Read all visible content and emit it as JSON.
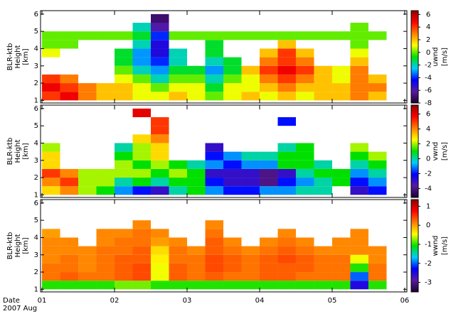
{
  "chart_data": [
    {
      "type": "heatmap",
      "ylabel": [
        "BLR-ktb",
        "Height",
        "[km]"
      ],
      "colorbar_label": "uwnd",
      "colorbar_unit": "[m/s]",
      "xlim": [
        0.98,
        6.03
      ],
      "xticks": [
        1,
        2,
        3,
        4,
        5,
        6
      ],
      "ylim": [
        0.85,
        6.2
      ],
      "yticks": [
        1,
        2,
        3,
        4,
        5,
        6
      ],
      "zlim": [
        -8,
        6.6
      ],
      "zticks": [
        -8,
        -6,
        -4,
        -2,
        0,
        2,
        4,
        6
      ],
      "colormap": [
        "#1a0030",
        "#5a1aa0",
        "#0000ff",
        "#00ccff",
        "#00e000",
        "#ffff00",
        "#ff8000",
        "#ff0000",
        "#900000"
      ],
      "x_edges": [
        1,
        1.25,
        1.5,
        1.75,
        2,
        2.25,
        2.5,
        2.75,
        3,
        3.25,
        3.5,
        3.75,
        4,
        4.25,
        4.5,
        4.75,
        5,
        5.25,
        5.5,
        5.75
      ],
      "y_edges": [
        1,
        1.5,
        2,
        2.5,
        3,
        3.5,
        4,
        4.5,
        5,
        5.5,
        6
      ],
      "z": [
        [
          4,
          5,
          3,
          2,
          2,
          1,
          1,
          2,
          1,
          0,
          1,
          2,
          1,
          2,
          1,
          2,
          2,
          3,
          2
        ],
        [
          5,
          4,
          3,
          2,
          2,
          1,
          0,
          1,
          1,
          -1,
          1,
          1,
          2,
          3,
          2,
          2,
          2,
          3,
          3
        ],
        [
          4,
          3,
          null,
          null,
          1,
          0,
          -2,
          0,
          0,
          -2,
          0,
          1,
          3,
          4,
          3,
          2,
          1,
          3,
          2
        ],
        [
          null,
          null,
          null,
          null,
          0,
          -2,
          -3,
          -1,
          -1,
          -3,
          -1,
          2,
          4,
          5,
          4,
          2,
          1,
          3,
          null
        ],
        [
          null,
          null,
          null,
          null,
          -1,
          -3,
          -4,
          -2,
          null,
          -2,
          -1,
          null,
          3,
          4,
          3,
          null,
          null,
          2,
          null
        ],
        [
          1,
          null,
          null,
          null,
          -1,
          -3,
          -5,
          -2,
          null,
          -1,
          null,
          null,
          2,
          4,
          2,
          null,
          null,
          1,
          null
        ],
        [
          0,
          0,
          null,
          null,
          null,
          -2,
          -5,
          null,
          null,
          -1,
          null,
          null,
          null,
          2,
          null,
          null,
          null,
          0,
          null
        ],
        [
          0,
          0,
          0,
          0,
          0,
          -1,
          -4,
          0,
          0,
          0,
          0,
          0,
          0,
          0,
          0,
          0,
          0,
          0,
          0
        ],
        [
          null,
          null,
          null,
          null,
          null,
          -2,
          -6,
          null,
          null,
          null,
          null,
          null,
          null,
          null,
          null,
          null,
          null,
          0,
          null
        ],
        [
          null,
          null,
          null,
          null,
          null,
          null,
          -7,
          null,
          null,
          null,
          null,
          null,
          null,
          null,
          null,
          null,
          null,
          null,
          null
        ]
      ]
    },
    {
      "type": "heatmap",
      "ylabel": [
        "BLR-ktb",
        "Height",
        "[km]"
      ],
      "colorbar_label": "vwnd",
      "colorbar_unit": "[m/s]",
      "xlim": [
        0.98,
        6.03
      ],
      "xticks": [
        1,
        2,
        3,
        4,
        5,
        6
      ],
      "ylim": [
        0.85,
        6.2
      ],
      "yticks": [
        1,
        2,
        3,
        4,
        5,
        6
      ],
      "zlim": [
        -5.2,
        7.2
      ],
      "zticks": [
        -4,
        -2,
        0,
        2,
        4,
        6
      ],
      "colormap": [
        "#1a0030",
        "#5a1aa0",
        "#0000ff",
        "#00ccff",
        "#00e000",
        "#ffff00",
        "#ff8000",
        "#ff0000",
        "#900000"
      ],
      "x_edges": [
        1,
        1.25,
        1.5,
        1.75,
        2,
        2.25,
        2.5,
        2.75,
        3,
        3.25,
        3.5,
        3.75,
        4,
        4.25,
        4.5,
        4.75,
        5,
        5.25,
        5.5,
        5.75
      ],
      "y_edges": [
        1,
        1.5,
        2,
        2.5,
        3,
        3.5,
        4,
        4.5,
        5,
        5.5,
        6
      ],
      "z": [
        [
          3,
          4,
          2,
          1,
          -1,
          -2,
          -3,
          0,
          1,
          -1,
          -2,
          -2,
          -1,
          -1,
          0,
          0,
          null,
          -3,
          -2
        ],
        [
          4,
          5,
          2,
          2,
          0,
          1,
          0,
          1,
          1,
          -2,
          -3,
          -3,
          -4,
          -2,
          -1,
          0,
          1,
          -2,
          -1
        ],
        [
          5,
          4,
          2,
          2,
          2,
          2,
          1,
          2,
          1,
          -3,
          -3,
          -3,
          -4,
          -3,
          0,
          1,
          1,
          -1,
          0
        ],
        [
          3,
          null,
          null,
          null,
          2,
          1,
          2,
          1,
          0,
          -1,
          -2,
          -1,
          -1,
          1,
          1,
          0,
          null,
          0,
          1
        ],
        [
          3,
          null,
          null,
          null,
          1,
          2,
          3,
          null,
          null,
          -2,
          -1,
          0,
          0,
          1,
          1,
          null,
          null,
          1,
          2
        ],
        [
          2,
          null,
          null,
          null,
          0,
          2,
          3,
          null,
          null,
          -3,
          null,
          null,
          null,
          0,
          1,
          null,
          null,
          2,
          null
        ],
        [
          null,
          null,
          null,
          null,
          null,
          3,
          4,
          null,
          null,
          null,
          null,
          null,
          null,
          null,
          null,
          null,
          null,
          null,
          null
        ],
        [
          null,
          null,
          null,
          null,
          null,
          null,
          5,
          null,
          null,
          null,
          null,
          null,
          null,
          null,
          null,
          null,
          null,
          null,
          null
        ],
        [
          null,
          null,
          null,
          null,
          null,
          null,
          5,
          null,
          null,
          null,
          null,
          null,
          null,
          -2,
          null,
          null,
          null,
          null,
          null
        ],
        [
          null,
          null,
          null,
          null,
          null,
          6,
          null,
          null,
          null,
          null,
          null,
          null,
          null,
          null,
          null,
          null,
          null,
          null,
          null
        ]
      ]
    },
    {
      "type": "heatmap",
      "ylabel": [
        "BLR-ktb",
        "Height",
        "[km]"
      ],
      "colorbar_label": "wwnd",
      "colorbar_unit": "[m/s]",
      "xlabel": [
        "Date",
        "2007 Aug"
      ],
      "xlim": [
        0.98,
        6.03
      ],
      "xticks": [
        {
          "value": 1,
          "label": "01"
        },
        {
          "value": 2,
          "label": "02"
        },
        {
          "value": 3,
          "label": "03"
        },
        {
          "value": 4,
          "label": "04"
        },
        {
          "value": 5,
          "label": "05"
        },
        {
          "value": 6,
          "label": "06"
        }
      ],
      "ylim": [
        0.85,
        6.2
      ],
      "yticks": [
        1,
        2,
        3,
        4,
        5,
        6
      ],
      "zlim": [
        -3.5,
        1.35
      ],
      "zticks": [
        -3,
        -2,
        -1,
        0,
        1
      ],
      "colormap": [
        "#1a0030",
        "#5a1aa0",
        "#0000ff",
        "#00ccff",
        "#00e000",
        "#ffff00",
        "#ff8000",
        "#ff0000",
        "#900000"
      ],
      "x_edges": [
        1,
        1.25,
        1.5,
        1.75,
        2,
        2.25,
        2.5,
        2.75,
        3,
        3.25,
        3.5,
        3.75,
        4,
        4.25,
        4.5,
        4.75,
        5,
        5.25,
        5.5,
        5.75
      ],
      "y_edges": [
        1,
        1.5,
        2,
        2.5,
        3,
        3.5,
        4,
        4.5,
        5,
        5.5,
        6
      ],
      "z": [
        [
          -1,
          -1,
          -1,
          -1,
          -0.8,
          -0.8,
          -1,
          -1,
          -1,
          -1,
          -1,
          -1,
          -1,
          -1,
          -1,
          -1,
          -1,
          -2.5,
          -1
        ],
        [
          0.2,
          0.3,
          0.2,
          0.2,
          0.3,
          0.4,
          -0.5,
          0.3,
          0.2,
          0.3,
          0.2,
          0.2,
          0.3,
          0.3,
          0.2,
          0.2,
          0.2,
          -2,
          0.2
        ],
        [
          0.2,
          0.2,
          0.1,
          0.2,
          0.3,
          0.4,
          -0.5,
          0.3,
          0.2,
          0.4,
          0.3,
          0.2,
          0.3,
          0.3,
          0.3,
          0.2,
          0.2,
          -1,
          0.2
        ],
        [
          0.1,
          0.2,
          0.1,
          0.2,
          0.3,
          0.3,
          -0.4,
          0.2,
          0.2,
          0.4,
          0.3,
          0.2,
          0.3,
          0.4,
          0.3,
          0.2,
          0.2,
          -0.5,
          0.1
        ],
        [
          0.1,
          0.1,
          0.1,
          0.2,
          0.2,
          0.3,
          -0.3,
          0.2,
          0.1,
          0.3,
          0.2,
          0.1,
          0.2,
          0.3,
          0.2,
          0.1,
          0.1,
          0.1,
          0.1
        ],
        [
          0.1,
          0.1,
          null,
          0.1,
          0.2,
          0.2,
          0,
          0.1,
          null,
          0.3,
          0.1,
          null,
          0.1,
          0.2,
          0.1,
          null,
          0.1,
          0.1,
          null
        ],
        [
          0,
          null,
          null,
          0.1,
          0.1,
          0.2,
          0.1,
          null,
          null,
          0.2,
          null,
          null,
          null,
          0.1,
          null,
          null,
          null,
          0.1,
          null
        ],
        [
          null,
          null,
          null,
          null,
          null,
          0.1,
          null,
          null,
          null,
          0.1,
          null,
          null,
          null,
          null,
          null,
          null,
          null,
          null,
          null
        ],
        [
          null,
          null,
          null,
          null,
          null,
          null,
          null,
          null,
          null,
          null,
          null,
          null,
          null,
          null,
          null,
          null,
          null,
          null,
          null
        ],
        [
          null,
          null,
          null,
          null,
          null,
          null,
          null,
          null,
          null,
          null,
          null,
          null,
          null,
          null,
          null,
          null,
          null,
          null,
          null
        ]
      ]
    }
  ]
}
